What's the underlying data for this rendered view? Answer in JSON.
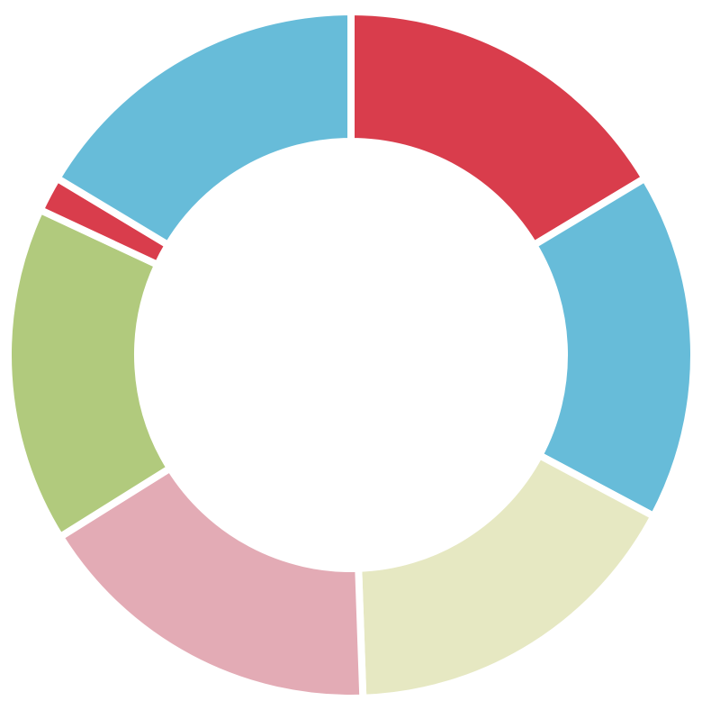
{
  "chart_data": {
    "type": "donut",
    "categories": [
      null,
      null,
      null,
      null,
      null,
      null,
      null
    ],
    "values": [
      59,
      59,
      60,
      60,
      57,
      6,
      59
    ],
    "colors": [
      "#d93d4c",
      "#67bcd9",
      "#e6e8c2",
      "#e3abb5",
      "#b1ca7d",
      "#d93d4c",
      "#67bcd9"
    ]
  }
}
